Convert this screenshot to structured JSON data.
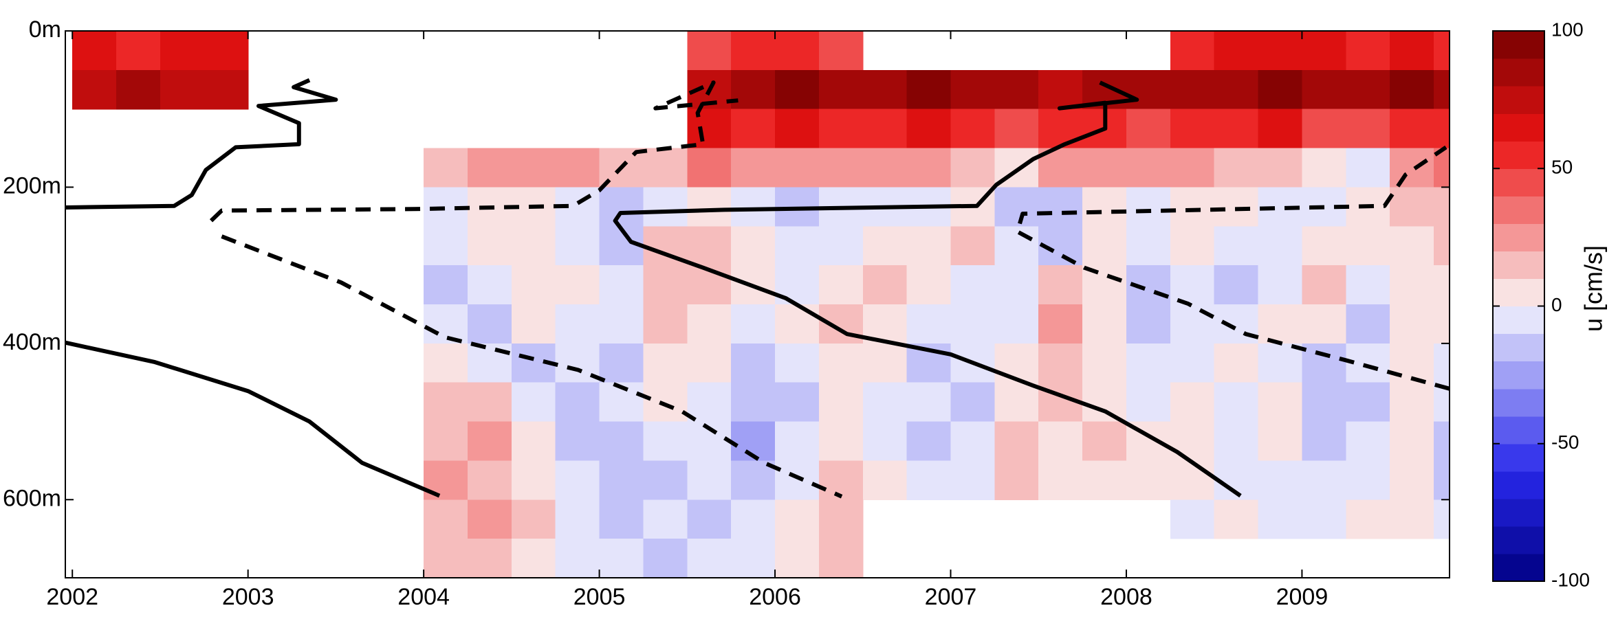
{
  "chart_data": {
    "type": "heatmap",
    "colorbar_label": "u [cm/s]",
    "clim": [
      -100,
      100
    ],
    "color_levels": 20,
    "colorbar_ticks": [
      -100,
      -50,
      0,
      50,
      100
    ],
    "xlim": [
      2001.96,
      2009.84
    ],
    "xticks": [
      2002,
      2003,
      2004,
      2005,
      2006,
      2007,
      2008,
      2009
    ],
    "ylim": [
      0,
      700
    ],
    "y_inverted": true,
    "yticks": [
      {
        "value": 0,
        "label": "0m"
      },
      {
        "value": 200,
        "label": "200m"
      },
      {
        "value": 400,
        "label": "400m"
      },
      {
        "value": 600,
        "label": "600m"
      }
    ],
    "x_bins": [
      2002,
      2002.25,
      2002.5,
      2002.75,
      2003,
      2003.25,
      2003.5,
      2003.75,
      2004,
      2004.25,
      2004.5,
      2004.75,
      2005,
      2005.25,
      2005.5,
      2005.75,
      2006,
      2006.25,
      2006.5,
      2006.75,
      2007,
      2007.25,
      2007.5,
      2007.75,
      2008,
      2008.25,
      2008.5,
      2008.75,
      2009,
      2009.25,
      2009.5,
      2009.75,
      2009.84
    ],
    "y_bins": [
      0,
      50,
      100,
      150,
      200,
      250,
      300,
      350,
      400,
      450,
      500,
      550,
      600,
      650,
      700
    ],
    "z": [
      [
        60,
        55,
        65,
        60,
        null,
        null,
        null,
        null,
        null,
        null,
        null,
        null,
        null,
        null,
        40,
        50,
        55,
        45,
        null,
        null,
        null,
        null,
        null,
        null,
        null,
        55,
        60,
        65,
        60,
        55,
        60,
        50
      ],
      [
        75,
        80,
        70,
        75,
        null,
        null,
        null,
        null,
        null,
        null,
        null,
        null,
        null,
        null,
        70,
        85,
        90,
        85,
        85,
        90,
        80,
        85,
        75,
        80,
        80,
        80,
        85,
        90,
        80,
        85,
        90,
        80
      ],
      [
        null,
        null,
        null,
        null,
        null,
        null,
        null,
        null,
        null,
        null,
        null,
        null,
        null,
        null,
        60,
        55,
        60,
        50,
        55,
        60,
        50,
        45,
        55,
        50,
        45,
        55,
        50,
        60,
        45,
        40,
        55,
        50
      ],
      [
        null,
        null,
        null,
        null,
        null,
        null,
        null,
        null,
        15,
        20,
        25,
        20,
        10,
        15,
        30,
        25,
        20,
        25,
        25,
        20,
        15,
        5,
        20,
        25,
        20,
        25,
        15,
        10,
        5,
        -10,
        20,
        30
      ],
      [
        null,
        null,
        null,
        null,
        null,
        null,
        null,
        null,
        -5,
        0,
        5,
        -10,
        -15,
        -5,
        5,
        -5,
        -15,
        -10,
        -10,
        -5,
        0,
        -15,
        -20,
        0,
        -5,
        0,
        5,
        -5,
        -10,
        0,
        10,
        15
      ],
      [
        null,
        null,
        null,
        null,
        null,
        null,
        null,
        null,
        -10,
        0,
        5,
        -5,
        -15,
        10,
        10,
        5,
        -5,
        -10,
        5,
        0,
        10,
        -10,
        -15,
        5,
        -5,
        5,
        -5,
        -10,
        0,
        5,
        5,
        15
      ],
      [
        null,
        null,
        null,
        null,
        null,
        null,
        null,
        null,
        -15,
        -5,
        5,
        0,
        -10,
        15,
        10,
        0,
        -10,
        5,
        10,
        5,
        -5,
        -10,
        15,
        0,
        -15,
        -5,
        -15,
        -5,
        10,
        -5,
        0,
        5
      ],
      [
        null,
        null,
        null,
        null,
        null,
        null,
        null,
        null,
        -10,
        -15,
        0,
        -10,
        -5,
        10,
        5,
        -10,
        0,
        10,
        5,
        -10,
        -5,
        -5,
        20,
        5,
        -15,
        -10,
        -5,
        5,
        0,
        -15,
        5,
        0
      ],
      [
        null,
        null,
        null,
        null,
        null,
        null,
        null,
        null,
        0,
        -10,
        -20,
        -5,
        -15,
        5,
        0,
        -15,
        -10,
        5,
        0,
        -15,
        -10,
        5,
        15,
        0,
        -10,
        -5,
        0,
        -10,
        -20,
        -10,
        0,
        -5
      ],
      [
        null,
        null,
        null,
        null,
        null,
        null,
        null,
        null,
        10,
        15,
        -10,
        -20,
        -10,
        0,
        -5,
        -20,
        -15,
        0,
        -10,
        -5,
        -20,
        5,
        10,
        5,
        -10,
        0,
        -5,
        5,
        -20,
        -15,
        0,
        -10
      ],
      [
        null,
        null,
        null,
        null,
        null,
        null,
        null,
        null,
        15,
        20,
        0,
        -15,
        -20,
        -10,
        -10,
        -25,
        -10,
        5,
        -5,
        -15,
        -10,
        10,
        5,
        10,
        0,
        5,
        -10,
        0,
        -15,
        -10,
        0,
        -20
      ],
      [
        null,
        null,
        null,
        null,
        null,
        null,
        null,
        null,
        20,
        15,
        5,
        -10,
        -20,
        -15,
        -10,
        -20,
        -5,
        10,
        0,
        -10,
        -5,
        10,
        5,
        5,
        0,
        0,
        -5,
        -10,
        -10,
        -5,
        5,
        -15
      ],
      [
        null,
        null,
        null,
        null,
        null,
        null,
        null,
        null,
        15,
        20,
        10,
        -5,
        -15,
        -10,
        -15,
        -10,
        0,
        10,
        null,
        null,
        null,
        null,
        null,
        null,
        null,
        -5,
        0,
        -10,
        -5,
        5,
        0,
        -10
      ],
      [
        null,
        null,
        null,
        null,
        null,
        null,
        null,
        null,
        10,
        15,
        5,
        -5,
        -10,
        -15,
        -10,
        -5,
        5,
        10,
        null,
        null,
        null,
        null,
        null,
        null,
        null,
        null,
        null,
        null,
        null,
        null,
        null,
        null
      ]
    ],
    "line_color": "#000000",
    "lines": [
      {
        "style": "solid",
        "x": [
          2001.96,
          2002.58,
          2002.68,
          2002.76,
          2002.93,
          2003.29,
          2003.29,
          2003.06,
          2003.5,
          2003.26,
          2003.35
        ],
        "y": [
          226,
          224,
          210,
          178,
          149,
          145,
          118,
          96,
          88,
          72,
          63
        ]
      },
      {
        "style": "solid",
        "x": [
          2001.96,
          2002.47,
          2003,
          2003.35,
          2003.65,
          2004.09
        ],
        "y": [
          399,
          424,
          461,
          500,
          553,
          595
        ]
      },
      {
        "style": "solid",
        "x": [
          2008.65,
          2008.29,
          2007.88,
          2007.47,
          2007,
          2006.41,
          2006.06,
          2005.59,
          2005.18,
          2005.09,
          2005.12,
          2005.71,
          2007.15,
          2007.26,
          2007.47,
          2007.65,
          2007.88,
          2007.88,
          2007.62,
          2008.06,
          2007.85
        ],
        "y": [
          595,
          539,
          487,
          454,
          414,
          388,
          342,
          303,
          270,
          243,
          233,
          229,
          224,
          197,
          164,
          145,
          125,
          92,
          99,
          88,
          66
        ]
      },
      {
        "style": "dashed",
        "x": [
          2002.79,
          2002.85,
          2003.94,
          2004.85,
          2005,
          2005.21,
          2005.59,
          2005.56,
          2005.65,
          2005.32,
          2005.79
        ],
        "y": [
          243,
          230,
          228,
          224,
          204,
          155,
          145,
          105,
          66,
          99,
          89
        ]
      },
      {
        "style": "dashed",
        "x": [
          2002.85,
          2003.53,
          2004.12,
          2004.88,
          2005.47,
          2005.94,
          2006.38
        ],
        "y": [
          263,
          322,
          392,
          434,
          487,
          553,
          596
        ]
      },
      {
        "style": "dashed",
        "x": [
          2009.84,
          2009.24,
          2008.68,
          2008.35,
          2007.76,
          2007.38,
          2007.41,
          2009.47,
          2009.59,
          2009.82
        ],
        "y": [
          458,
          421,
          388,
          349,
          303,
          257,
          234,
          224,
          184,
          149
        ]
      }
    ]
  }
}
